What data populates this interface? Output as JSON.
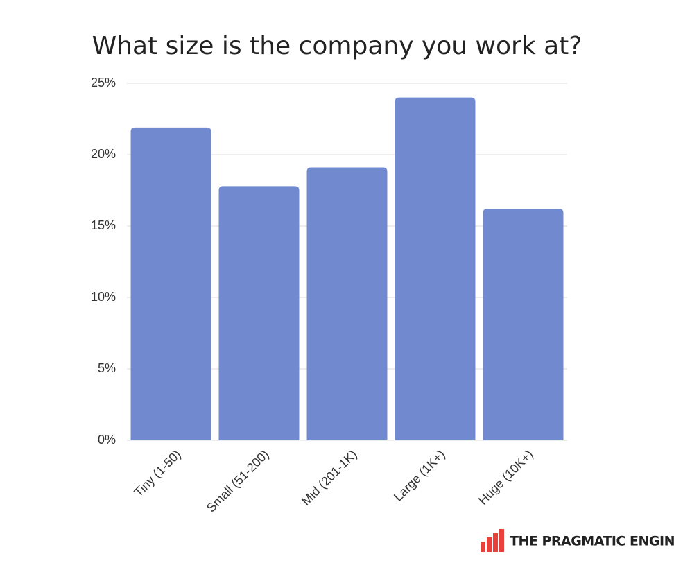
{
  "chart_data": {
    "type": "bar",
    "title": "What size is the company you work at?",
    "categories": [
      "Tiny (1-50)",
      "Small (51-200)",
      "Mid (201-1K)",
      "Large (1K+)",
      "Huge (10K+)"
    ],
    "values": [
      21.9,
      17.8,
      19.1,
      24.0,
      16.2
    ],
    "color": "#7189cf",
    "ylim": [
      0,
      25
    ],
    "yticks": [
      {
        "value": 0,
        "label": "0%"
      },
      {
        "value": 5,
        "label": "5%"
      },
      {
        "value": 10,
        "label": "10%"
      },
      {
        "value": 15,
        "label": "15%"
      },
      {
        "value": 20,
        "label": "20%"
      },
      {
        "value": 25,
        "label": "25%"
      }
    ],
    "grid": true
  },
  "brand": "THE PRAGMATIC ENGINEER"
}
